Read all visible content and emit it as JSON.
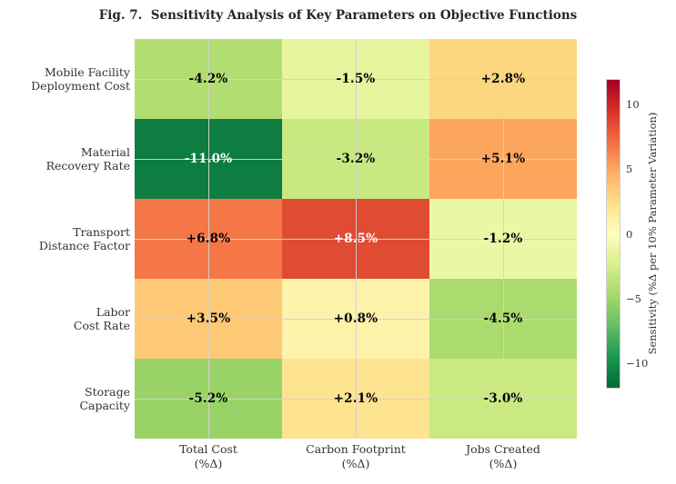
{
  "chart_data": {
    "type": "heatmap",
    "title": "Fig. 7.  Sensitivity Analysis of Key Parameters on Objective Functions",
    "rows": [
      {
        "label_lines": [
          "Mobile Facility",
          "Deployment Cost"
        ]
      },
      {
        "label_lines": [
          "Material",
          "Recovery Rate"
        ]
      },
      {
        "label_lines": [
          "Transport",
          "Distance Factor"
        ]
      },
      {
        "label_lines": [
          "Labor",
          "Cost Rate"
        ]
      },
      {
        "label_lines": [
          "Storage",
          "Capacity"
        ]
      }
    ],
    "columns": [
      {
        "label_lines": [
          "Total Cost",
          "(%Δ)"
        ]
      },
      {
        "label_lines": [
          "Carbon Footprint",
          "(%Δ)"
        ]
      },
      {
        "label_lines": [
          "Jobs Created",
          "(%Δ)"
        ]
      }
    ],
    "values": [
      [
        -4.2,
        -1.5,
        2.8
      ],
      [
        -11.0,
        -3.2,
        5.1
      ],
      [
        6.8,
        8.5,
        -1.2
      ],
      [
        3.5,
        0.8,
        -4.5
      ],
      [
        -5.2,
        2.1,
        -3.0
      ]
    ],
    "cell_labels": [
      [
        "-4.2%",
        "-1.5%",
        "+2.8%"
      ],
      [
        "-11.0%",
        "-3.2%",
        "+5.1%"
      ],
      [
        "+6.8%",
        "+8.5%",
        "-1.2%"
      ],
      [
        "+3.5%",
        "+0.8%",
        "-4.5%"
      ],
      [
        "-5.2%",
        "+2.1%",
        "-3.0%"
      ]
    ],
    "cell_colors": [
      [
        "#b2dd71",
        "#e7f59f",
        "#fdd780"
      ],
      [
        "#0d7d41",
        "#c8e881",
        "#fca55d"
      ],
      [
        "#f57748",
        "#e04b33",
        "#ecf7a5"
      ],
      [
        "#fdc977",
        "#fcf2aa",
        "#abdb6e"
      ],
      [
        "#99d368",
        "#fee391",
        "#cbe982"
      ]
    ],
    "cell_text_colors": [
      [
        "#000000",
        "#000000",
        "#000000"
      ],
      [
        "#ffffff",
        "#000000",
        "#000000"
      ],
      [
        "#000000",
        "#ffffff",
        "#000000"
      ],
      [
        "#000000",
        "#000000",
        "#000000"
      ],
      [
        "#000000",
        "#000000",
        "#000000"
      ]
    ],
    "grid": {
      "on": true,
      "color": "#d2d2cd"
    },
    "colorbar": {
      "label": "Sensitivity (%Δ per 10% Parameter Variation)",
      "vmin": -12,
      "vmax": 12,
      "colormap": "RdYlGn_r",
      "ticks": [
        {
          "value": 10,
          "label": "10"
        },
        {
          "value": 5,
          "label": "5"
        },
        {
          "value": 0,
          "label": "0"
        },
        {
          "value": -5,
          "label": "−5"
        },
        {
          "value": -10,
          "label": "−10"
        }
      ],
      "gradient_top_to_bottom": [
        "#a50026",
        "#d73027",
        "#f46d43",
        "#fdae61",
        "#fee08b",
        "#ffffbf",
        "#d9ef8b",
        "#a6d96a",
        "#66bd63",
        "#1a9850",
        "#006837"
      ]
    }
  }
}
